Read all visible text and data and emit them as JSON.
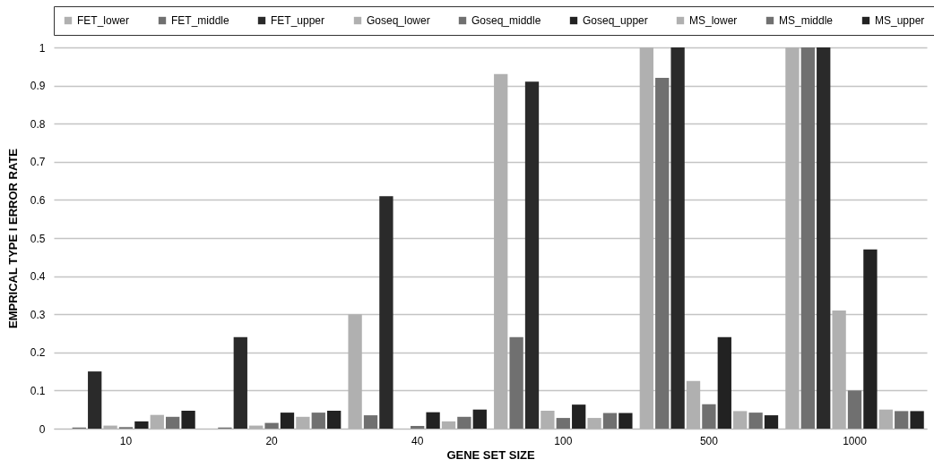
{
  "chart_data": {
    "type": "bar",
    "xlabel": "GENE SET SIZE",
    "ylabel": "EMPRICAL TYPE I ERROR RATE",
    "categories": [
      "10",
      "20",
      "40",
      "100",
      "500",
      "1000"
    ],
    "series": [
      {
        "name": "FET_lower",
        "color": "#b0b0b0",
        "values": [
          0,
          0,
          0.3,
          0.93,
          1,
          1
        ]
      },
      {
        "name": "FET_middle",
        "color": "#707070",
        "values": [
          0.003,
          0.003,
          0.035,
          0.24,
          0.92,
          1
        ]
      },
      {
        "name": "FET_upper",
        "color": "#2a2a2a",
        "values": [
          0.15,
          0.24,
          0.61,
          0.91,
          1,
          1
        ]
      },
      {
        "name": "Goseq_lower",
        "color": "#b0b0b0",
        "values": [
          0.008,
          0.008,
          0,
          0.047,
          0.125,
          0.31
        ]
      },
      {
        "name": "Goseq_middle",
        "color": "#707070",
        "values": [
          0.004,
          0.015,
          0.007,
          0.028,
          0.064,
          0.1
        ]
      },
      {
        "name": "Goseq_upper",
        "color": "#222222",
        "values": [
          0.019,
          0.042,
          0.043,
          0.063,
          0.24,
          0.47
        ]
      },
      {
        "name": "MS_lower",
        "color": "#b0b0b0",
        "values": [
          0.036,
          0.031,
          0.019,
          0.028,
          0.046,
          0.05
        ]
      },
      {
        "name": "MS_middle",
        "color": "#707070",
        "values": [
          0.031,
          0.042,
          0.031,
          0.041,
          0.042,
          0.046
        ]
      },
      {
        "name": "MS_upper",
        "color": "#222222",
        "values": [
          0.047,
          0.047,
          0.05,
          0.041,
          0.035,
          0.046
        ]
      }
    ],
    "ylim": [
      0,
      1
    ],
    "yticks": [
      0,
      0.1,
      0.2,
      0.3,
      0.4,
      0.5,
      0.6,
      0.7,
      0.8,
      0.9,
      1
    ],
    "grid": "y",
    "legend": "top"
  }
}
